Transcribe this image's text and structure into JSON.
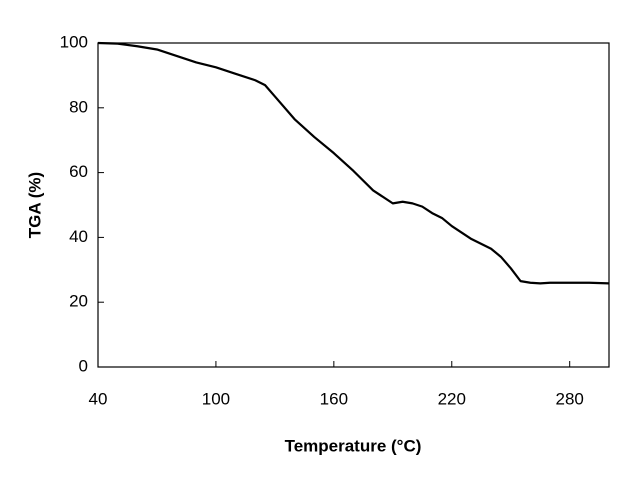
{
  "chart_data": {
    "type": "line",
    "x_label": "Temperature (°C)",
    "y_label": "TGA (%)",
    "x": [
      40,
      50,
      60,
      70,
      80,
      90,
      100,
      110,
      120,
      125,
      130,
      140,
      150,
      160,
      170,
      180,
      190,
      195,
      200,
      205,
      210,
      215,
      220,
      230,
      240,
      245,
      250,
      255,
      260,
      265,
      270,
      280,
      290,
      300
    ],
    "series": [
      {
        "name": "TGA",
        "color": "#000000",
        "values": [
          100,
          99.8,
          99,
          98,
          96,
          94,
          92.5,
          90.5,
          88.5,
          87,
          83.5,
          76.5,
          71,
          66,
          60.5,
          54.5,
          50.5,
          51,
          50.5,
          49.5,
          47.5,
          46,
          43.5,
          39.5,
          36.5,
          34,
          30.5,
          26.5,
          26,
          25.8,
          26,
          26,
          26,
          25.8
        ]
      }
    ],
    "xlim": [
      40,
      300
    ],
    "xticks": [
      40,
      100,
      160,
      220,
      280
    ],
    "ylim": [
      0,
      100
    ],
    "yticks": [
      0,
      20,
      40,
      60,
      80,
      100
    ]
  }
}
